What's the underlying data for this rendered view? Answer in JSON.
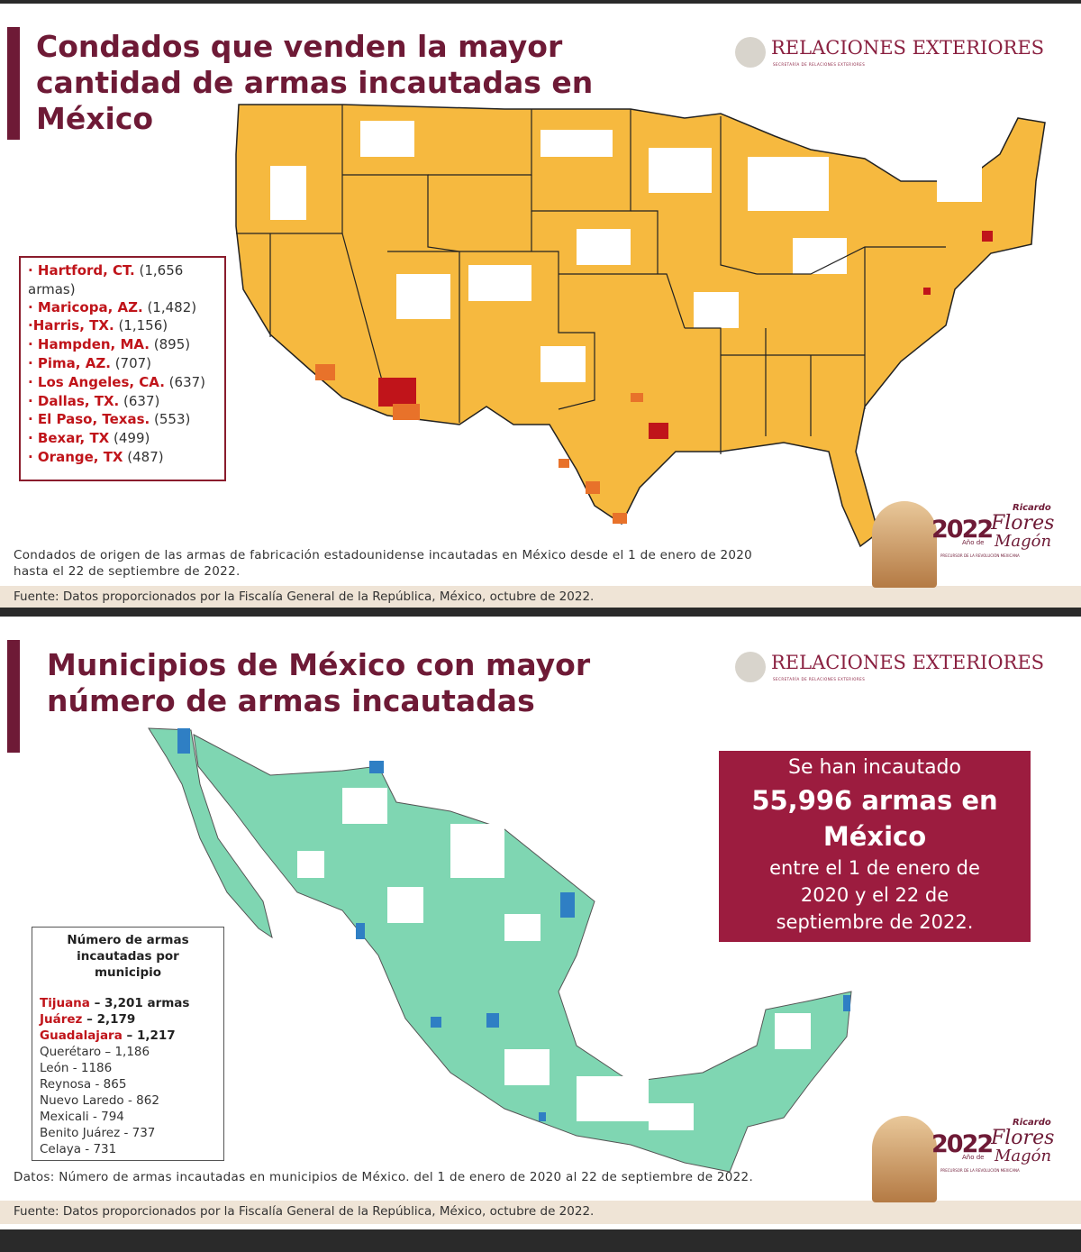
{
  "slides": [
    {
      "title_lines": [
        "Condados que venden la mayor",
        "cantidad de armas incautadas en",
        "México"
      ],
      "logo": {
        "name": "RELACIONES EXTERIORES",
        "subtitle": "SECRETARÍA DE RELACIONES EXTERIORES"
      },
      "legend": {
        "items": [
          {
            "name": "· Hartford, CT.",
            "count": "(1,656 armas)"
          },
          {
            "name": "· Maricopa, AZ.",
            "count": "(1,482)"
          },
          {
            "name": "·Harris, TX.",
            "count": "(1,156)"
          },
          {
            "name": "· Hampden, MA.",
            "count": "(895)"
          },
          {
            "name": "· Pima, AZ.",
            "count": "(707)"
          },
          {
            "name": "· Los Angeles, CA.",
            "count": "(637)"
          },
          {
            "name": "· Dallas, TX.",
            "count": "(637)"
          },
          {
            "name": "· El Paso, Texas.",
            "count": "(553)"
          },
          {
            "name": "· Bexar, TX",
            "count": "(499)"
          },
          {
            "name": "· Orange, TX",
            "count": "(487)"
          }
        ]
      },
      "caption_lines": [
        "Condados de origen de las armas de fabricación estadounidense incautadas en México desde el 1 de enero de 2020",
        "hasta el 22 de septiembre de 2022."
      ],
      "source": "Fuente: Datos proporcionados por la Fiscalía General de la República, México, octubre de 2022.",
      "badge": {
        "year": "2022",
        "first": "Ricardo",
        "last1": "Flores",
        "label": "Año de",
        "last2": "Magón",
        "tagline": "PRECURSOR DE LA REVOLUCIÓN MEXICANA"
      }
    },
    {
      "title_lines": [
        "Municipios de México con mayor",
        "número de armas incautadas"
      ],
      "logo": {
        "name": "RELACIONES EXTERIORES",
        "subtitle": "SECRETARÍA DE RELACIONES EXTERIORES"
      },
      "callout": {
        "lead": "Se han incautado",
        "headline": [
          "55,996 armas en",
          "México"
        ],
        "detail": [
          "entre el 1 de enero de",
          "2020 y el 22 de",
          "septiembre de 2022."
        ]
      },
      "legend": {
        "heading": [
          "Número de armas",
          "incautadas por",
          "municipio"
        ],
        "top": [
          {
            "name": "Tijuana",
            "count": "– 3,201 armas"
          },
          {
            "name": "Juárez",
            "count": "– 2,179"
          },
          {
            "name": "Guadalajara",
            "count": "– 1,217"
          }
        ],
        "rest": [
          "Querétaro – 1,186",
          "León - 1186",
          "Reynosa - 865",
          "Nuevo Laredo - 862",
          "Mexicali - 794",
          "Benito Juárez - 737",
          "Celaya - 731"
        ]
      },
      "caption_lines": [
        "Datos: Número de armas incautadas en municipios de México. del 1 de enero de 2020 al 22 de septiembre de 2022."
      ],
      "source": "Fuente: Datos proporcionados por la Fiscalía General de la República, México, octubre de 2022.",
      "badge": {
        "year": "2022",
        "first": "Ricardo",
        "last1": "Flores",
        "label": "Año de",
        "last2": "Magón",
        "tagline": "PRECURSOR DE LA REVOLUCIÓN MEXICANA"
      }
    }
  ]
}
